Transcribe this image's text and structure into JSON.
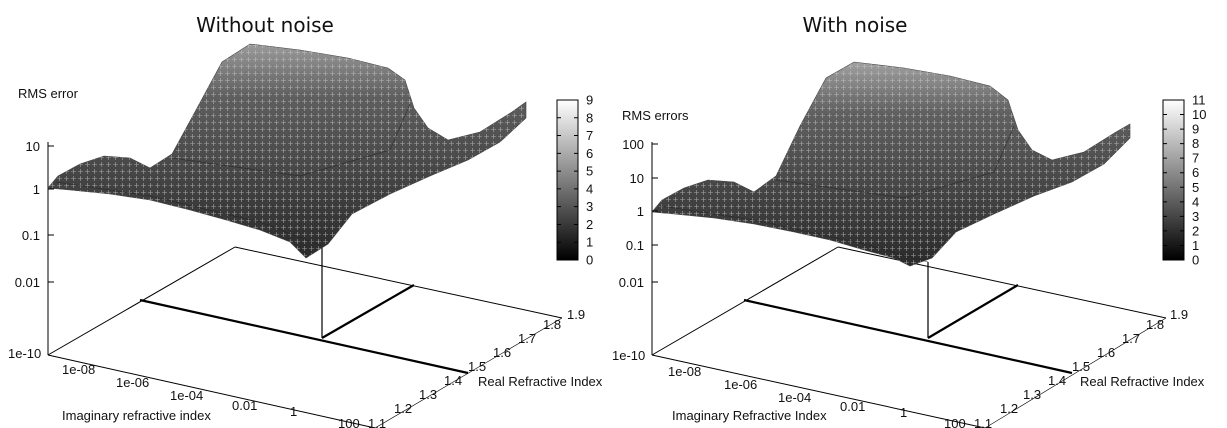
{
  "chart_data": [
    {
      "type": "surface",
      "title": "Without noise",
      "zlabel": "RMS error",
      "xlabel": "Imaginary refractive index",
      "ylabel": "Real Refractive Index",
      "z_scale": "log",
      "x_scale": "log",
      "z_ticks": [
        "10",
        "1",
        "0.1",
        "0.01"
      ],
      "x_ticks": [
        "1e-10",
        "1e-08",
        "1e-06",
        "1e-04",
        "0.01",
        "1",
        "100"
      ],
      "y_ticks": [
        "1.1",
        "1.2",
        "1.3",
        "1.4",
        "1.5",
        "1.6",
        "1.7",
        "1.8",
        "1.9"
      ],
      "colorbar": {
        "min": 0,
        "max": 9,
        "ticks": [
          "9",
          "8",
          "7",
          "6",
          "5",
          "4",
          "3",
          "2",
          "1",
          "0"
        ]
      },
      "xlim": [
        1e-10,
        100
      ],
      "ylim": [
        1.1,
        1.9
      ]
    },
    {
      "type": "surface",
      "title": "With noise",
      "zlabel": "RMS errors",
      "xlabel": "Imaginary Refractive Index",
      "ylabel": "Real Refractive Index",
      "z_scale": "log",
      "x_scale": "log",
      "z_ticks": [
        "100",
        "10",
        "1",
        "0.1",
        "0.01"
      ],
      "x_ticks": [
        "1e-10",
        "1e-08",
        "1e-06",
        "1e-04",
        "0.01",
        "1",
        "100"
      ],
      "y_ticks": [
        "1.1",
        "1.2",
        "1.3",
        "1.4",
        "1.5",
        "1.6",
        "1.7",
        "1.8",
        "1.9"
      ],
      "colorbar": {
        "min": 0,
        "max": 11,
        "ticks": [
          "11",
          "10",
          "9",
          "8",
          "7",
          "6",
          "5",
          "4",
          "3",
          "2",
          "1",
          "0"
        ]
      },
      "xlim": [
        1e-10,
        100
      ],
      "ylim": [
        1.1,
        1.9
      ]
    }
  ]
}
